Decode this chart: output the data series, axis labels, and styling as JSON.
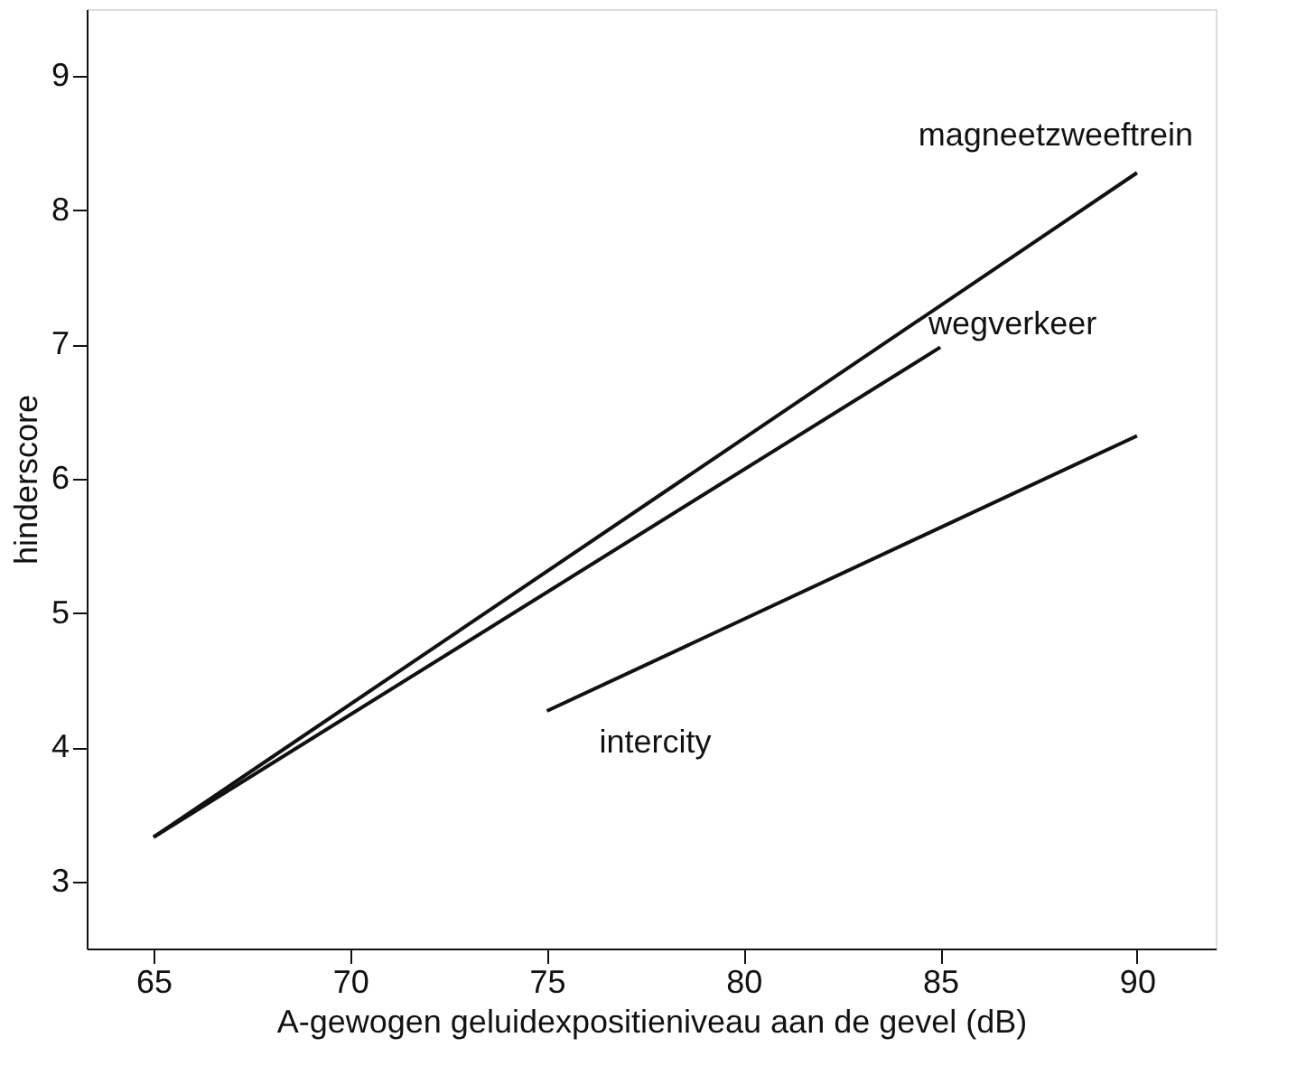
{
  "chart_data": {
    "type": "line",
    "xlabel": "A-gewogen geluidexpositieniveau aan de gevel (dB)",
    "ylabel": "hinderscore",
    "xlim": [
      63.3,
      92.0
    ],
    "xticks": [
      65,
      70,
      75,
      80,
      85,
      90
    ],
    "ylim": [
      2.5,
      9.5
    ],
    "yticks": [
      3,
      4,
      5,
      6,
      7,
      8,
      9
    ],
    "grid": false,
    "legend": false,
    "series": [
      {
        "name": "magneetzweeftrein",
        "color": "#111111",
        "x": [
          65,
          90
        ],
        "values": [
          3.33,
          8.28
        ]
      },
      {
        "name": "wegverkeer",
        "color": "#111111",
        "x": [
          65,
          85
        ],
        "values": [
          3.33,
          6.98
        ]
      },
      {
        "name": "intercity",
        "color": "#111111",
        "x": [
          75,
          90
        ],
        "values": [
          4.27,
          6.32
        ]
      }
    ]
  }
}
